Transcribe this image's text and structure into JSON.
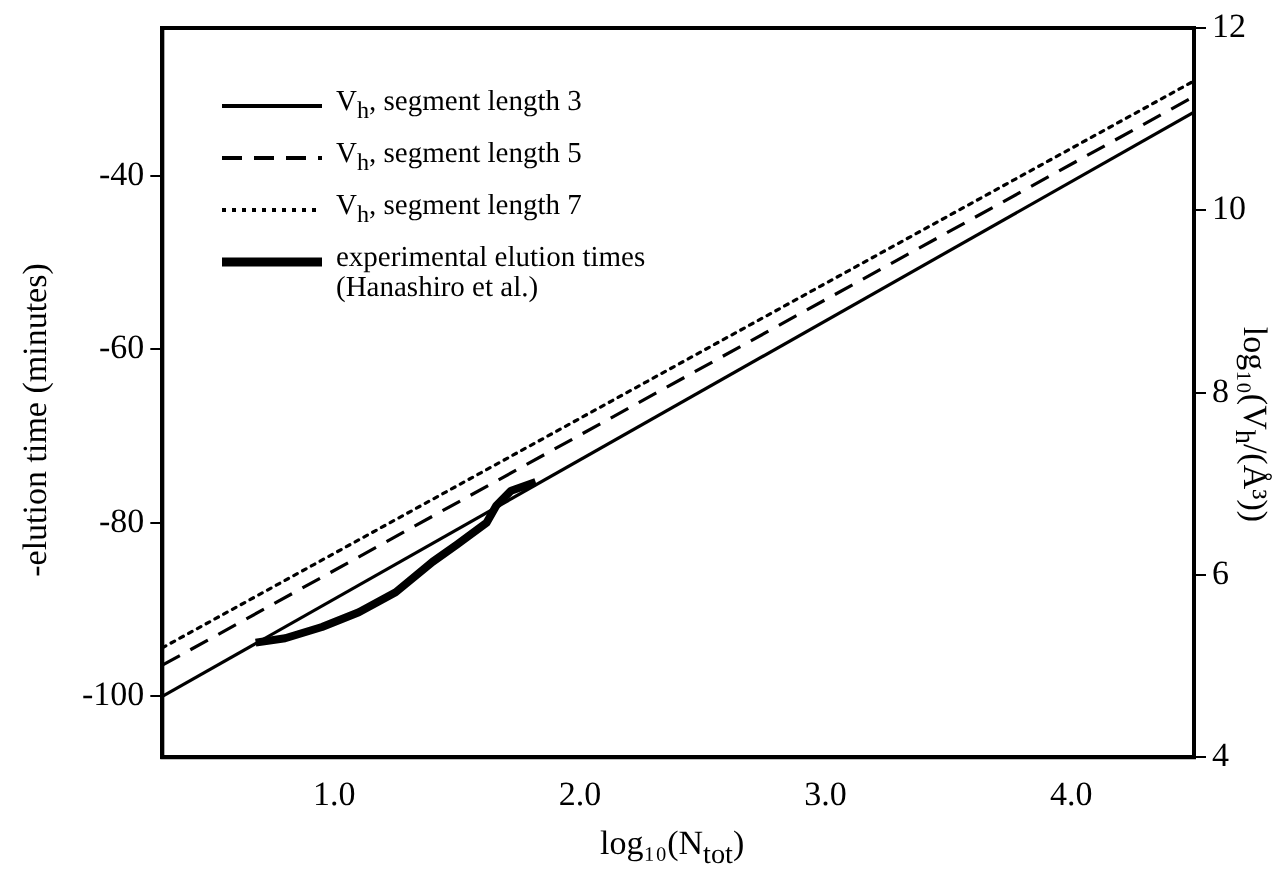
{
  "chart_data": {
    "type": "line",
    "xlabel": "log₁₀(N$_{tot}$)",
    "ylabel": "-elution time (minutes)",
    "y2label": "log₁₀(V$_{h}$/(Å³))",
    "xlim": [
      0.3,
      4.5
    ],
    "xticks": [
      {
        "value": 1,
        "label": "1.0"
      },
      {
        "value": 2,
        "label": "2.0"
      },
      {
        "value": 3,
        "label": "3.0"
      },
      {
        "value": 4,
        "label": "4.0"
      }
    ],
    "ylim": [
      -107,
      -23
    ],
    "yticks": [
      -100,
      -80,
      -60,
      -40
    ],
    "y2lim": [
      4,
      12
    ],
    "y2ticks": [
      4,
      6,
      8,
      10,
      12
    ],
    "grid": false,
    "legend": "top left",
    "marker": "none",
    "series": [
      {
        "name": "V$_{h}$, segment length 3",
        "color": "#000000",
        "line_style": "solid",
        "x": [
          0.3,
          4.5
        ],
        "values": [
          -100,
          -32.7
        ]
      },
      {
        "name": "V$_{h}$, segment length 5",
        "color": "#000000",
        "line_style": "dashed",
        "x": [
          0.3,
          4.5
        ],
        "values": [
          -96.4,
          -30.9
        ]
      },
      {
        "name": "V$_{h}$, segment length 7",
        "color": "#000000",
        "line_style": "dotted",
        "x": [
          0.3,
          4.5
        ],
        "values": [
          -94.4,
          -29.1
        ]
      },
      {
        "name": "experimental elution times (Hanashiro et al.)",
        "color": "#000000",
        "line_style": "solid",
        "x": [
          0.68,
          0.8,
          0.95,
          1.1,
          1.25,
          1.4,
          1.5,
          1.62,
          1.66,
          1.72,
          1.82
        ],
        "values": [
          -93.8,
          -93.3,
          -92,
          -90.3,
          -88,
          -84.5,
          -82.5,
          -80,
          -78,
          -76.3,
          -75.3
        ]
      }
    ]
  }
}
